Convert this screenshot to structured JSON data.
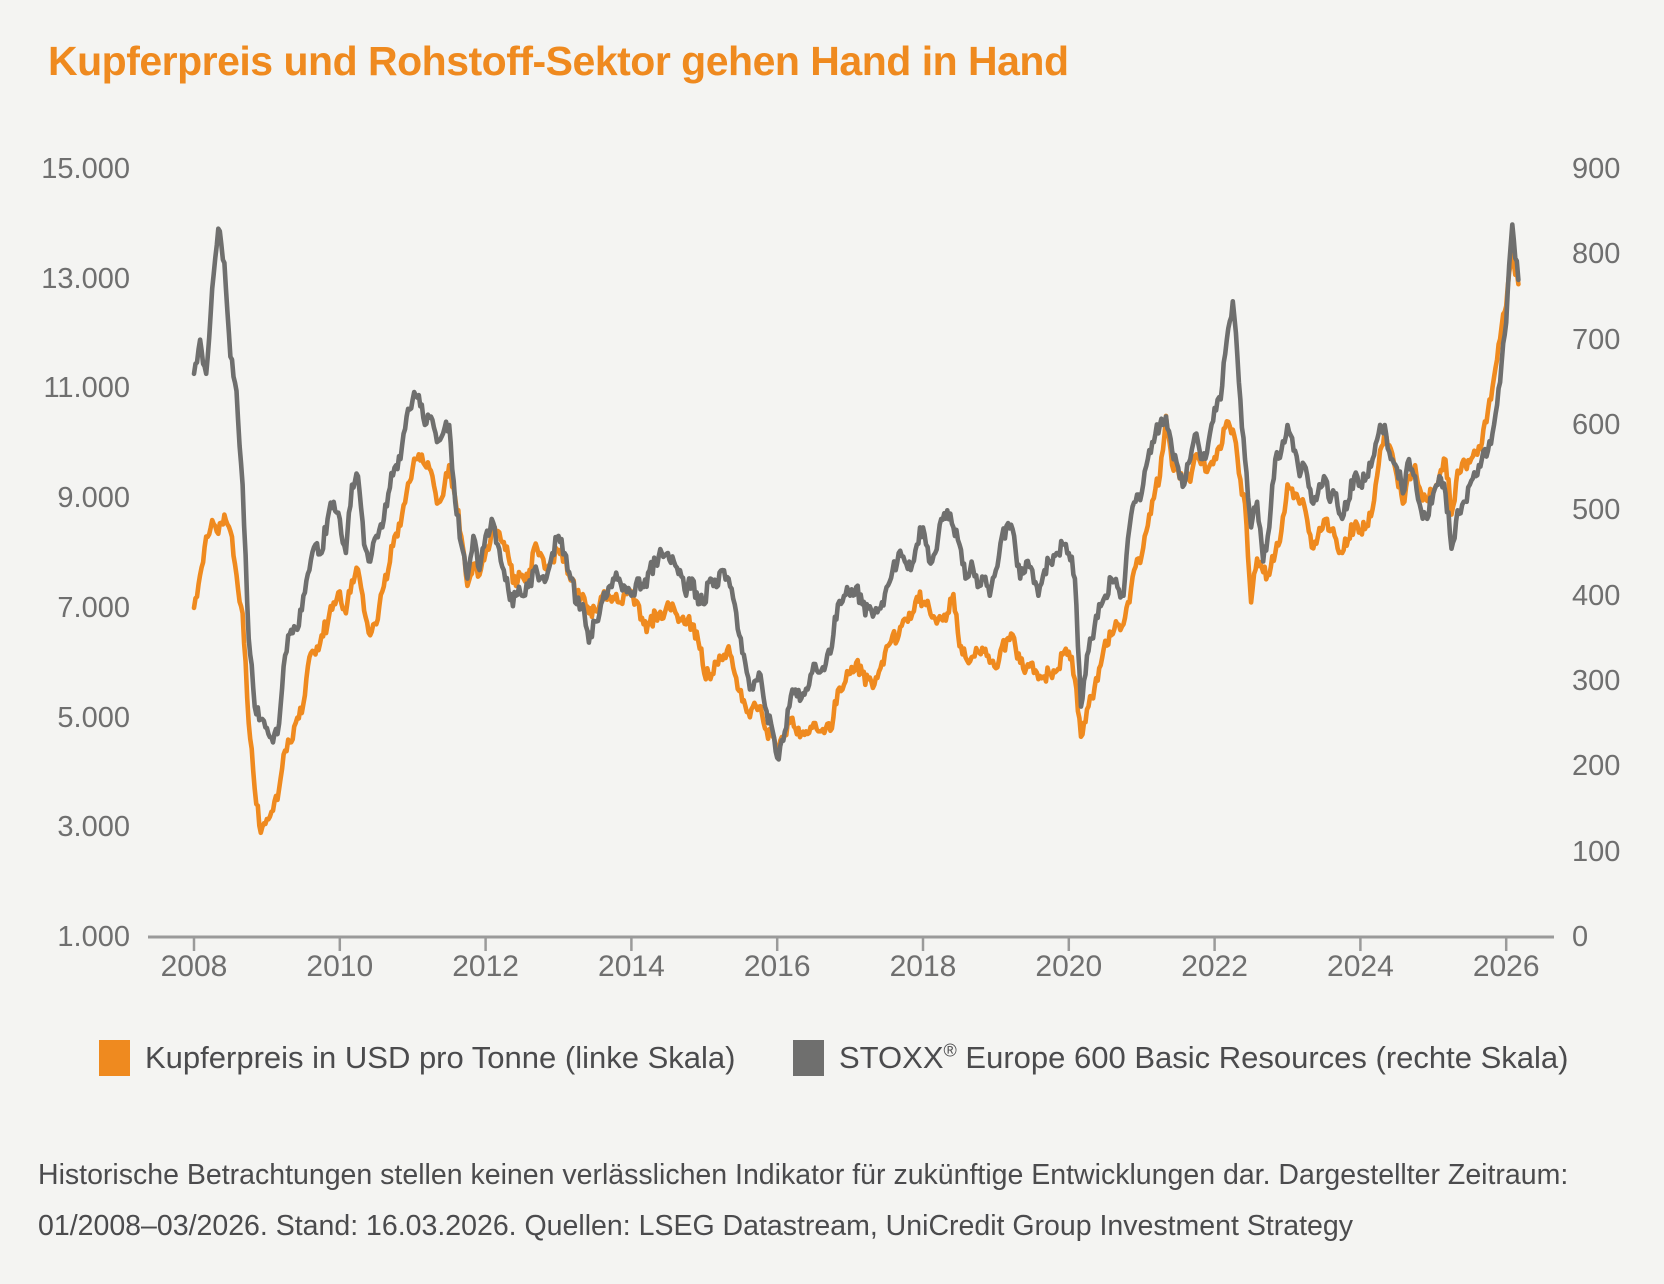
{
  "page": {
    "background": "#f4f4f2"
  },
  "title": {
    "text": "Kupferpreis und Rohstoff-Sektor gehen Hand in Hand",
    "color": "#ef8a1f"
  },
  "colors": {
    "copper_line": "#ef8a1f",
    "stoxx_line": "#6f6f6e",
    "axis_line": "#9a9a9a",
    "tick_label": "#6f6f6f",
    "text": "#4b4b4d"
  },
  "chart_data": {
    "type": "line",
    "title": "Kupferpreis und Rohstoff-Sektor gehen Hand in Hand",
    "x_start_year": 2008,
    "x_step_months": 1,
    "x_end_label": "03/2026",
    "grid": false,
    "legend_position": "bottom",
    "x_axis": {
      "tick_years": [
        2008,
        2010,
        2012,
        2014,
        2016,
        2018,
        2020,
        2022,
        2024,
        2026
      ],
      "tick_labels": [
        "2008",
        "2010",
        "2012",
        "2014",
        "2016",
        "2018",
        "2020",
        "2022",
        "2024",
        "2026"
      ]
    },
    "y_left": {
      "min": 1000,
      "max": 15000,
      "tick_values": [
        15000,
        13000,
        11000,
        9000,
        7000,
        5000,
        3000,
        1000
      ],
      "tick_labels": [
        "15.000",
        "13.000",
        "11.000",
        "9.000",
        "7.000",
        "5.000",
        "3.000",
        "1.000"
      ]
    },
    "y_right": {
      "min": 0,
      "max": 900,
      "tick_values": [
        900,
        800,
        700,
        600,
        500,
        400,
        300,
        200,
        100,
        0
      ],
      "tick_labels": [
        "900",
        "800",
        "700",
        "600",
        "500",
        "400",
        "300",
        "200",
        "100",
        "0"
      ]
    },
    "series": [
      {
        "name": "Kupferpreis in USD pro Tonne (linke Skala)",
        "axis": "left",
        "color": "#ef8a1f",
        "values": [
          7000,
          7600,
          8300,
          8600,
          8350,
          8700,
          8400,
          7600,
          6900,
          4900,
          3700,
          2900,
          3150,
          3300,
          3700,
          4400,
          4550,
          5000,
          5250,
          6100,
          6150,
          6500,
          6700,
          7100,
          7300,
          6900,
          7500,
          7700,
          6950,
          6500,
          6700,
          7300,
          7700,
          8300,
          8500,
          9100,
          9550,
          9800,
          9600,
          9500,
          8900,
          9050,
          9600,
          9000,
          8300,
          7400,
          7800,
          7600,
          8000,
          8400,
          8400,
          8200,
          7800,
          7400,
          7600,
          7500,
          8100,
          8000,
          7700,
          7900,
          8050,
          7900,
          7500,
          7200,
          7250,
          6900,
          6950,
          7200,
          7150,
          7200,
          7100,
          7300,
          7300,
          7100,
          6700,
          6700,
          6900,
          6800,
          7100,
          7000,
          6800,
          6700,
          6700,
          6400,
          5800,
          5700,
          6000,
          6050,
          6300,
          5800,
          5500,
          5100,
          5200,
          5200,
          4800,
          4700,
          4450,
          4600,
          4900,
          4800,
          4700,
          4700,
          4900,
          4750,
          4800,
          4800,
          5500,
          5600,
          5800,
          6000,
          5800,
          5700,
          5600,
          5900,
          6300,
          6500,
          6500,
          6800,
          6800,
          7200,
          7100,
          7000,
          6800,
          6800,
          6900,
          7250,
          6300,
          6100,
          6100,
          6200,
          6200,
          6000,
          5900,
          6300,
          6450,
          6450,
          6000,
          5900,
          6000,
          5700,
          5750,
          5800,
          5850,
          6150,
          6200,
          5700,
          4650,
          5150,
          5350,
          5900,
          6400,
          6500,
          6700,
          6700,
          7100,
          7750,
          7950,
          8500,
          9000,
          9400,
          10500,
          9600,
          9500,
          9350,
          9300,
          9800,
          9700,
          9550,
          9750,
          9900,
          10400,
          10250,
          9450,
          8900,
          7100,
          7900,
          7650,
          7600,
          8000,
          8400,
          9250,
          9000,
          8900,
          8750,
          8100,
          8300,
          8600,
          8400,
          8250,
          8000,
          8250,
          8500,
          8400,
          8500,
          8800,
          9600,
          10250,
          9900,
          9400,
          8900,
          9400,
          9600,
          9100,
          8950,
          9100,
          9400,
          9700,
          8700,
          9500,
          9700,
          9650,
          9800,
          10000,
          10600,
          11200,
          11900,
          12500,
          13450,
          12900
        ]
      },
      {
        "name": "STOXX® Europe 600 Basic Resources (rechte Skala)",
        "axis": "right",
        "color": "#6f6f6e",
        "values": [
          660,
          700,
          660,
          760,
          830,
          790,
          680,
          640,
          530,
          350,
          270,
          255,
          245,
          228,
          250,
          330,
          360,
          360,
          400,
          430,
          460,
          450,
          490,
          510,
          490,
          450,
          530,
          540,
          460,
          440,
          470,
          480,
          520,
          550,
          560,
          610,
          630,
          635,
          600,
          610,
          580,
          590,
          600,
          510,
          460,
          420,
          470,
          430,
          470,
          490,
          460,
          430,
          395,
          400,
          400,
          410,
          430,
          420,
          420,
          450,
          470,
          450,
          420,
          390,
          390,
          345,
          370,
          390,
          400,
          420,
          420,
          410,
          400,
          420,
          410,
          430,
          440,
          450,
          450,
          440,
          430,
          400,
          420,
          390,
          390,
          420,
          410,
          430,
          420,
          390,
          350,
          310,
          290,
          310,
          270,
          250,
          210,
          230,
          270,
          290,
          280,
          290,
          320,
          310,
          320,
          340,
          390,
          400,
          400,
          410,
          390,
          385,
          380,
          385,
          410,
          430,
          450,
          440,
          430,
          460,
          480,
          440,
          450,
          490,
          500,
          480,
          460,
          420,
          440,
          410,
          420,
          400,
          430,
          470,
          485,
          470,
          420,
          440,
          430,
          400,
          430,
          440,
          450,
          460,
          450,
          420,
          270,
          330,
          350,
          390,
          400,
          420,
          410,
          400,
          480,
          510,
          520,
          560,
          580,
          600,
          610,
          570,
          550,
          530,
          560,
          590,
          560,
          580,
          620,
          630,
          700,
          745,
          650,
          560,
          480,
          510,
          440,
          480,
          560,
          570,
          600,
          570,
          540,
          550,
          510,
          520,
          540,
          510,
          520,
          490,
          510,
          540,
          530,
          540,
          560,
          590,
          600,
          560,
          550,
          520,
          560,
          540,
          500,
          490,
          520,
          540,
          520,
          455,
          500,
          510,
          530,
          540,
          560,
          570,
          600,
          650,
          720,
          835,
          770
        ]
      }
    ]
  },
  "legend": {
    "items": [
      {
        "label": "Kupferpreis in USD pro Tonne (linke Skala)",
        "color": "#ef8a1f"
      },
      {
        "label_pre": "STOXX",
        "label_sup": "®",
        "label_post": " Europe 600 Basic Resources (rechte Skala)",
        "color": "#6f6f6e"
      }
    ]
  },
  "footer": {
    "line1": "Historische Betrachtungen stellen keinen verlässlichen Indikator für zukünftige Entwicklungen dar. Dargestellter Zeitraum:",
    "line2": "01/2008–03/2026. Stand: 16.03.2026. Quellen: LSEG Datastream, UniCredit Group Investment Strategy"
  }
}
